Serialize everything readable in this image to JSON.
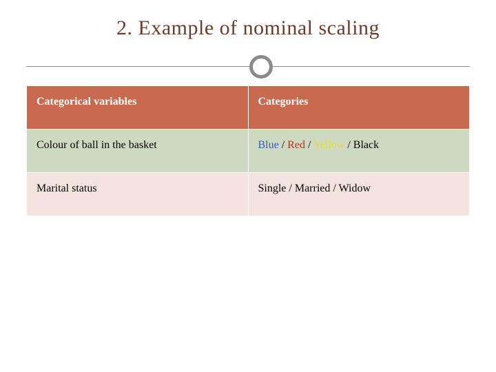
{
  "slide": {
    "title": "2. Example of nominal scaling",
    "title_color": "#6b3b2e",
    "title_fontsize": 30,
    "background_color": "#ffffff",
    "divider": {
      "line_color": "#888888",
      "circle_border_color": "#8a8a8a",
      "circle_border_width": 5
    }
  },
  "table": {
    "header_bg": "#c86a4f",
    "header_text_color": "#ffffff",
    "row_colors": [
      "#ced9c2",
      "#f4e3de"
    ],
    "columns": [
      "Categorical variables",
      "Categories"
    ],
    "rows": [
      {
        "variable": "Colour of ball in the basket",
        "categories": [
          {
            "text": "Blue",
            "color": "#2a5fc9"
          },
          {
            "text": "Red",
            "color": "#b83225"
          },
          {
            "text": "Yellow",
            "color": "#e9d54a"
          },
          {
            "text": "Black",
            "color": "#000000"
          }
        ],
        "separator": "/",
        "separator_color": "#000000"
      },
      {
        "variable": "Marital status",
        "categories": [
          {
            "text": "Single",
            "color": "#000000"
          },
          {
            "text": "Married",
            "color": "#000000"
          },
          {
            "text": "Widow",
            "color": "#000000"
          }
        ],
        "separator": "/",
        "separator_color": "#000000"
      }
    ]
  }
}
